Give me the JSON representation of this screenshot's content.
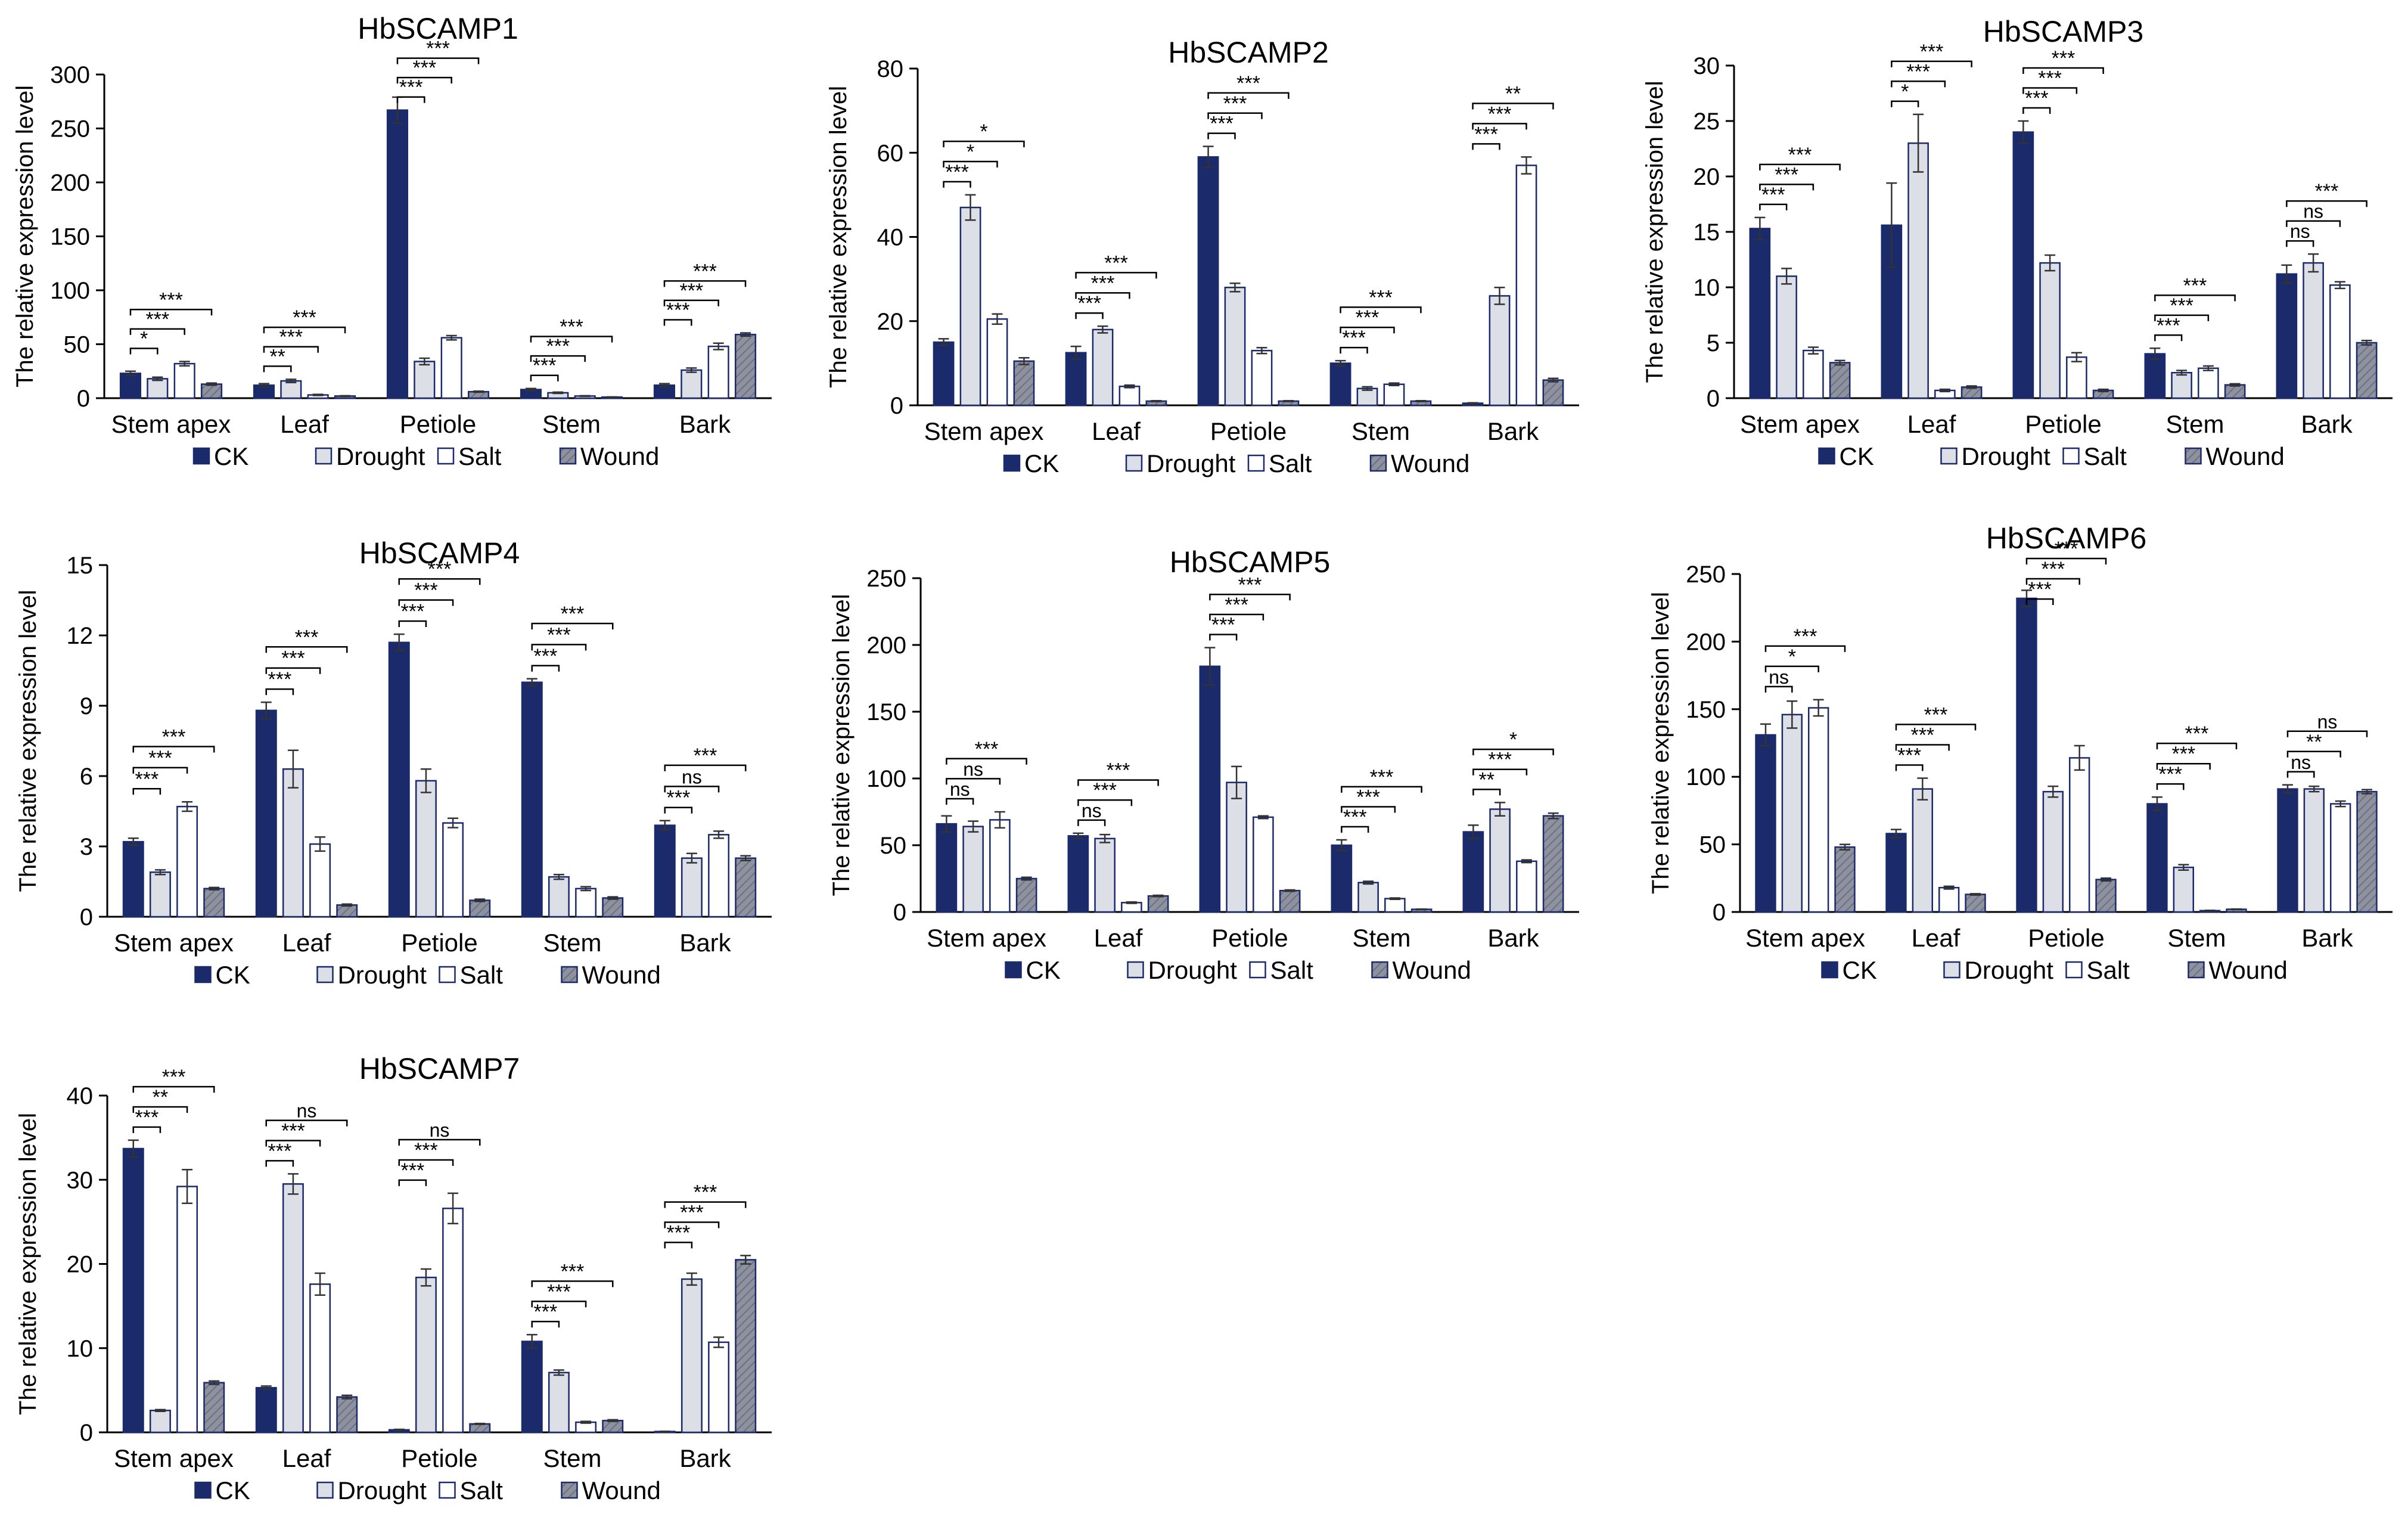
{
  "palette": {
    "ck_fill": "#1b2a6b",
    "drought_fill": "#dcdfe6",
    "salt_fill": "#ffffff",
    "wound_fill": "#8e929e",
    "stroke": "#1b2a6b",
    "axis": "#000000"
  },
  "chart_data": [
    {
      "type": "bar",
      "title": "HbSCAMP1",
      "ylabel": "The relative expression level",
      "xlabel": "",
      "ylim": [
        0,
        300
      ],
      "yticks": [
        0,
        50,
        100,
        150,
        200,
        250,
        300
      ],
      "categories": [
        "Stem apex",
        "Leaf",
        "Petiole",
        "Stem",
        "Bark"
      ],
      "legend": [
        "CK",
        "Drought",
        "Salt",
        "Wound"
      ],
      "series": [
        {
          "name": "CK",
          "values": [
            23,
            12,
            267,
            8,
            12
          ],
          "errors": [
            2,
            1.5,
            12,
            1,
            1.5
          ]
        },
        {
          "name": "Drought",
          "values": [
            18,
            16,
            34,
            5,
            26
          ],
          "errors": [
            1.5,
            1.5,
            3,
            0.6,
            2
          ]
        },
        {
          "name": "Salt",
          "values": [
            32,
            3,
            56,
            2,
            48
          ],
          "errors": [
            2,
            0.5,
            2,
            0.3,
            3
          ]
        },
        {
          "name": "Wound",
          "values": [
            13,
            2,
            6,
            1,
            59
          ],
          "errors": [
            1,
            0.3,
            0.5,
            0.2,
            1.5
          ]
        }
      ],
      "significance": [
        [
          "*",
          "***",
          "***"
        ],
        [
          "**",
          "***",
          "***"
        ],
        [
          "***",
          "***",
          "***"
        ],
        [
          "***",
          "***",
          "***"
        ],
        [
          "***",
          "***",
          "***"
        ]
      ]
    },
    {
      "type": "bar",
      "title": "HbSCAMP2",
      "ylabel": "The relative expression level",
      "xlabel": "",
      "ylim": [
        0,
        80
      ],
      "yticks": [
        0,
        20,
        40,
        60,
        80
      ],
      "categories": [
        "Stem apex",
        "Leaf",
        "Petiole",
        "Stem",
        "Bark"
      ],
      "legend": [
        "CK",
        "Drought",
        "Salt",
        "Wound"
      ],
      "series": [
        {
          "name": "CK",
          "values": [
            15,
            12.5,
            59,
            10,
            0.5
          ],
          "errors": [
            0.8,
            1.5,
            2.5,
            0.6,
            0.1
          ]
        },
        {
          "name": "Drought",
          "values": [
            47,
            18,
            28,
            4,
            26
          ],
          "errors": [
            3,
            0.8,
            1,
            0.4,
            2
          ]
        },
        {
          "name": "Salt",
          "values": [
            20.5,
            4.5,
            13,
            5,
            57
          ],
          "errors": [
            1.2,
            0.3,
            0.7,
            0.3,
            2
          ]
        },
        {
          "name": "Wound",
          "values": [
            10.5,
            1,
            1,
            1,
            6
          ],
          "errors": [
            0.8,
            0.1,
            0.1,
            0.1,
            0.4
          ]
        }
      ],
      "significance": [
        [
          "***",
          "*",
          "*"
        ],
        [
          "***",
          "***",
          "***"
        ],
        [
          "***",
          "***",
          "***"
        ],
        [
          "***",
          "***",
          "***"
        ],
        [
          "***",
          "***",
          "**"
        ]
      ]
    },
    {
      "type": "bar",
      "title": "HbSCAMP3",
      "ylabel": "The relative expression level",
      "xlabel": "",
      "ylim": [
        0,
        30
      ],
      "yticks": [
        0,
        5,
        10,
        15,
        20,
        25,
        30
      ],
      "categories": [
        "Stem apex",
        "Leaf",
        "Petiole",
        "Stem",
        "Bark"
      ],
      "legend": [
        "CK",
        "Drought",
        "Salt",
        "Wound"
      ],
      "series": [
        {
          "name": "CK",
          "values": [
            15.3,
            15.6,
            24,
            4,
            11.2
          ],
          "errors": [
            1,
            3.8,
            1,
            0.5,
            0.8
          ]
        },
        {
          "name": "Drought",
          "values": [
            11,
            23,
            12.2,
            2.3,
            12.2
          ],
          "errors": [
            0.7,
            2.6,
            0.7,
            0.2,
            0.8
          ]
        },
        {
          "name": "Salt",
          "values": [
            4.3,
            0.7,
            3.7,
            2.7,
            10.2
          ],
          "errors": [
            0.3,
            0.1,
            0.4,
            0.2,
            0.3
          ]
        },
        {
          "name": "Wound",
          "values": [
            3.2,
            1,
            0.7,
            1.2,
            5
          ],
          "errors": [
            0.2,
            0.1,
            0.1,
            0.1,
            0.2
          ]
        }
      ],
      "significance": [
        [
          "***",
          "***",
          "***"
        ],
        [
          "*",
          "***",
          "***"
        ],
        [
          "***",
          "***",
          "***"
        ],
        [
          "***",
          "***",
          "***"
        ],
        [
          "ns",
          "ns",
          "***"
        ]
      ]
    },
    {
      "type": "bar",
      "title": "HbSCAMP4",
      "ylabel": "The relative expression level",
      "xlabel": "",
      "ylim": [
        0,
        15
      ],
      "yticks": [
        0,
        3,
        6,
        9,
        12,
        15
      ],
      "categories": [
        "Stem apex",
        "Leaf",
        "Petiole",
        "Stem",
        "Bark"
      ],
      "legend": [
        "CK",
        "Drought",
        "Salt",
        "Wound"
      ],
      "series": [
        {
          "name": "CK",
          "values": [
            3.2,
            8.8,
            11.7,
            10,
            3.9
          ],
          "errors": [
            0.15,
            0.35,
            0.35,
            0.15,
            0.2
          ]
        },
        {
          "name": "Drought",
          "values": [
            1.9,
            6.3,
            5.8,
            1.7,
            2.5
          ],
          "errors": [
            0.1,
            0.8,
            0.5,
            0.1,
            0.2
          ]
        },
        {
          "name": "Salt",
          "values": [
            4.7,
            3.1,
            4,
            1.2,
            3.5
          ],
          "errors": [
            0.2,
            0.3,
            0.2,
            0.08,
            0.15
          ]
        },
        {
          "name": "Wound",
          "values": [
            1.2,
            0.5,
            0.7,
            0.8,
            2.5
          ],
          "errors": [
            0.05,
            0.04,
            0.05,
            0.05,
            0.1
          ]
        }
      ],
      "significance": [
        [
          "***",
          "***",
          "***"
        ],
        [
          "***",
          "***",
          "***"
        ],
        [
          "***",
          "***",
          "***"
        ],
        [
          "***",
          "***",
          "***"
        ],
        [
          "***",
          "ns",
          "***"
        ]
      ]
    },
    {
      "type": "bar",
      "title": "HbSCAMP5",
      "ylabel": "The relative expression level",
      "xlabel": "",
      "ylim": [
        0,
        250
      ],
      "yticks": [
        0,
        50,
        100,
        150,
        200,
        250
      ],
      "categories": [
        "Stem apex",
        "Leaf",
        "Petiole",
        "Stem",
        "Bark"
      ],
      "legend": [
        "CK",
        "Drought",
        "Salt",
        "Wound"
      ],
      "series": [
        {
          "name": "CK",
          "values": [
            66,
            57,
            184,
            50,
            60
          ],
          "errors": [
            6,
            2,
            14,
            4,
            5
          ]
        },
        {
          "name": "Drought",
          "values": [
            64,
            55,
            97,
            22,
            77
          ],
          "errors": [
            4,
            3,
            12,
            1,
            5
          ]
        },
        {
          "name": "Salt",
          "values": [
            69,
            7,
            71,
            10,
            38
          ],
          "errors": [
            6,
            0.5,
            1,
            0.5,
            1
          ]
        },
        {
          "name": "Wound",
          "values": [
            25,
            12,
            16,
            2,
            72
          ],
          "errors": [
            1,
            0.5,
            0.5,
            0.2,
            2
          ]
        }
      ],
      "significance": [
        [
          "ns",
          "ns",
          "***"
        ],
        [
          "ns",
          "***",
          "***"
        ],
        [
          "***",
          "***",
          "***"
        ],
        [
          "***",
          "***",
          "***"
        ],
        [
          "**",
          "***",
          "*"
        ]
      ]
    },
    {
      "type": "bar",
      "title": "HbSCAMP6",
      "ylabel": "The relative expression level",
      "xlabel": "",
      "ylim": [
        0,
        250
      ],
      "yticks": [
        0,
        50,
        100,
        150,
        200,
        250
      ],
      "categories": [
        "Stem apex",
        "Leaf",
        "Petiole",
        "Stem",
        "Bark"
      ],
      "legend": [
        "CK",
        "Drought",
        "Salt",
        "Wound"
      ],
      "series": [
        {
          "name": "CK",
          "values": [
            131,
            58,
            232,
            80,
            91
          ],
          "errors": [
            8,
            3,
            6,
            5,
            3
          ]
        },
        {
          "name": "Drought",
          "values": [
            146,
            91,
            89,
            33,
            91
          ],
          "errors": [
            10,
            8,
            4,
            2,
            2
          ]
        },
        {
          "name": "Salt",
          "values": [
            151,
            18,
            114,
            1,
            80
          ],
          "errors": [
            6,
            1,
            9,
            0.2,
            2
          ]
        },
        {
          "name": "Wound",
          "values": [
            48,
            13,
            24,
            2,
            89
          ],
          "errors": [
            2,
            0.5,
            1,
            0.2,
            1.5
          ]
        }
      ],
      "significance": [
        [
          "ns",
          "*",
          "***"
        ],
        [
          "***",
          "***",
          "***"
        ],
        [
          "***",
          "***",
          "***"
        ],
        [
          "***",
          "***",
          "***"
        ],
        [
          "ns",
          "**",
          "ns"
        ]
      ]
    },
    {
      "type": "bar",
      "title": "HbSCAMP7",
      "ylabel": "The relative expression level",
      "xlabel": "",
      "ylim": [
        0,
        40
      ],
      "yticks": [
        0,
        10,
        20,
        30,
        40
      ],
      "categories": [
        "Stem apex",
        "Leaf",
        "Petiole",
        "Stem",
        "Bark"
      ],
      "legend": [
        "CK",
        "Drought",
        "Salt",
        "Wound"
      ],
      "series": [
        {
          "name": "CK",
          "values": [
            33.7,
            5.3,
            0.3,
            10.8,
            0.1
          ],
          "errors": [
            1,
            0.2,
            0.05,
            0.8,
            0.02
          ]
        },
        {
          "name": "Drought",
          "values": [
            2.6,
            29.5,
            18.4,
            7.1,
            18.2
          ],
          "errors": [
            0.1,
            1.2,
            1,
            0.3,
            0.7
          ]
        },
        {
          "name": "Salt",
          "values": [
            29.2,
            17.6,
            26.6,
            1.2,
            10.7
          ],
          "errors": [
            2,
            1.3,
            1.8,
            0.1,
            0.6
          ]
        },
        {
          "name": "Wound",
          "values": [
            5.9,
            4.2,
            1,
            1.4,
            20.5
          ],
          "errors": [
            0.2,
            0.2,
            0.05,
            0.1,
            0.5
          ]
        }
      ],
      "significance": [
        [
          "***",
          "**",
          "***"
        ],
        [
          "***",
          "***",
          "ns"
        ],
        [
          "***",
          "***",
          "ns"
        ],
        [
          "***",
          "***",
          "***"
        ],
        [
          "***",
          "***",
          "***"
        ]
      ]
    }
  ]
}
